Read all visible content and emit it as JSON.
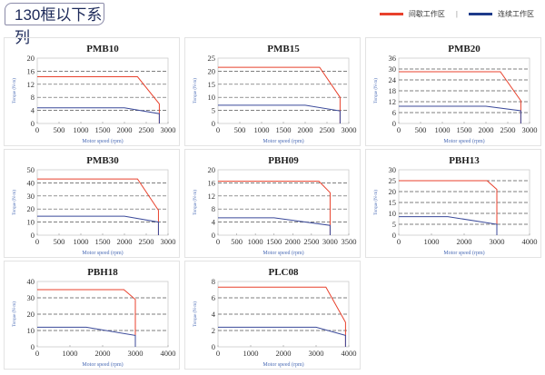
{
  "header": {
    "title": "130框以下系列",
    "legend": [
      {
        "label": "间歇工作区",
        "color": "#e8412c"
      },
      {
        "label": "连续工作区",
        "color": "#1e3a8a"
      }
    ]
  },
  "chart_data": [
    {
      "type": "line",
      "title": "PMB10",
      "xlabel": "Motor speed (rpm)",
      "ylabel": "Torque (N·m)",
      "xlim": [
        0,
        3000
      ],
      "xstep": 500,
      "ylim": [
        0,
        20
      ],
      "ystep": 4,
      "series": [
        {
          "name": "间歇工作区",
          "color": "#e8412c",
          "points": [
            [
              0,
              14.3
            ],
            [
              2300,
              14.3
            ],
            [
              2800,
              6
            ],
            [
              2800,
              0
            ]
          ]
        },
        {
          "name": "连续工作区",
          "color": "#3b4a9a",
          "points": [
            [
              0,
              4.8
            ],
            [
              2000,
              4.8
            ],
            [
              2800,
              3
            ],
            [
              2800,
              0
            ]
          ]
        }
      ]
    },
    {
      "type": "line",
      "title": "PMB15",
      "xlabel": "Motor speed (rpm)",
      "ylabel": "Torque (N·m)",
      "xlim": [
        0,
        3000
      ],
      "xstep": 500,
      "ylim": [
        0,
        25
      ],
      "ystep": 5,
      "series": [
        {
          "name": "间歇工作区",
          "color": "#e8412c",
          "points": [
            [
              0,
              21.5
            ],
            [
              2330,
              21.5
            ],
            [
              2800,
              10
            ],
            [
              2800,
              0
            ]
          ]
        },
        {
          "name": "连续工作区",
          "color": "#3b4a9a",
          "points": [
            [
              0,
              7
            ],
            [
              2000,
              7
            ],
            [
              2800,
              4.8
            ],
            [
              2800,
              0
            ]
          ]
        }
      ]
    },
    {
      "type": "line",
      "title": "PMB20",
      "xlabel": "Motor speed (rpm)",
      "ylabel": "Torque (N·m)",
      "xlim": [
        0,
        3000
      ],
      "xstep": 500,
      "ylim": [
        0,
        36
      ],
      "ystep": 6,
      "series": [
        {
          "name": "间歇工作区",
          "color": "#e8412c",
          "points": [
            [
              0,
              28.5
            ],
            [
              2330,
              28.5
            ],
            [
              2800,
              12.5
            ],
            [
              2800,
              0
            ]
          ]
        },
        {
          "name": "连续工作区",
          "color": "#3b4a9a",
          "points": [
            [
              0,
              9.5
            ],
            [
              2000,
              9.5
            ],
            [
              2800,
              7
            ],
            [
              2800,
              0
            ]
          ]
        }
      ]
    },
    {
      "type": "line",
      "title": "PMB30",
      "xlabel": "Motor speed (rpm)",
      "ylabel": "Torque (N·m)",
      "xlim": [
        0,
        3000
      ],
      "xstep": 500,
      "ylim": [
        0,
        50
      ],
      "ystep": 10,
      "series": [
        {
          "name": "间歇工作区",
          "color": "#e8412c",
          "points": [
            [
              0,
              43
            ],
            [
              2300,
              43
            ],
            [
              2780,
              19
            ],
            [
              2780,
              0
            ]
          ]
        },
        {
          "name": "连续工作区",
          "color": "#3b4a9a",
          "points": [
            [
              0,
              14.5
            ],
            [
              2000,
              14.5
            ],
            [
              2780,
              10
            ],
            [
              2780,
              0
            ]
          ]
        }
      ]
    },
    {
      "type": "line",
      "title": "PBH09",
      "xlabel": "Motor speed (rpm)",
      "ylabel": "Torque (N·m)",
      "xlim": [
        0,
        3500
      ],
      "xstep": 500,
      "ylim": [
        0,
        20
      ],
      "ystep": 4,
      "series": [
        {
          "name": "间歇工作区",
          "color": "#e8412c",
          "points": [
            [
              0,
              16.5
            ],
            [
              2700,
              16.5
            ],
            [
              3000,
              13
            ],
            [
              3000,
              0
            ]
          ]
        },
        {
          "name": "连续工作区",
          "color": "#3b4a9a",
          "points": [
            [
              0,
              5.3
            ],
            [
              1500,
              5.3
            ],
            [
              3000,
              3
            ],
            [
              3000,
              0
            ]
          ]
        }
      ]
    },
    {
      "type": "line",
      "title": "PBH13",
      "xlabel": "Motor speed (rpm)",
      "ylabel": "Torque (N·m)",
      "xlim": [
        0,
        4000
      ],
      "xstep": 1000,
      "ylim": [
        0,
        30
      ],
      "ystep": 5,
      "series": [
        {
          "name": "间歇工作区",
          "color": "#e8412c",
          "points": [
            [
              0,
              25
            ],
            [
              2700,
              25
            ],
            [
              3000,
              21
            ],
            [
              3000,
              0
            ]
          ]
        },
        {
          "name": "连续工作区",
          "color": "#3b4a9a",
          "points": [
            [
              0,
              8.5
            ],
            [
              1500,
              8.5
            ],
            [
              3000,
              5
            ],
            [
              3000,
              0
            ]
          ]
        }
      ]
    },
    {
      "type": "line",
      "title": "PBH18",
      "xlabel": "Motor speed (rpm)",
      "ylabel": "Torque (N·m)",
      "xlim": [
        0,
        4000
      ],
      "xstep": 1000,
      "ylim": [
        0,
        40
      ],
      "ystep": 10,
      "series": [
        {
          "name": "间歇工作区",
          "color": "#e8412c",
          "points": [
            [
              0,
              35
            ],
            [
              2650,
              35
            ],
            [
              3000,
              29
            ],
            [
              3000,
              0
            ]
          ]
        },
        {
          "name": "连续工作区",
          "color": "#3b4a9a",
          "points": [
            [
              0,
              12
            ],
            [
              1500,
              12
            ],
            [
              3000,
              7
            ],
            [
              3000,
              0
            ]
          ]
        }
      ]
    },
    {
      "type": "line",
      "title": "PLC08",
      "xlabel": "Motor speed (rpm)",
      "ylabel": "Torque (N·m)",
      "xlim": [
        0,
        4000
      ],
      "xstep": 1000,
      "ylim": [
        0,
        8
      ],
      "ystep": 2,
      "series": [
        {
          "name": "间歇工作区",
          "color": "#e8412c",
          "points": [
            [
              0,
              7.3
            ],
            [
              3300,
              7.3
            ],
            [
              3900,
              3
            ],
            [
              3900,
              0
            ]
          ]
        },
        {
          "name": "连续工作区",
          "color": "#3b4a9a",
          "points": [
            [
              0,
              2.4
            ],
            [
              3000,
              2.4
            ],
            [
              3900,
              1.4
            ],
            [
              3900,
              0
            ]
          ]
        }
      ]
    }
  ]
}
